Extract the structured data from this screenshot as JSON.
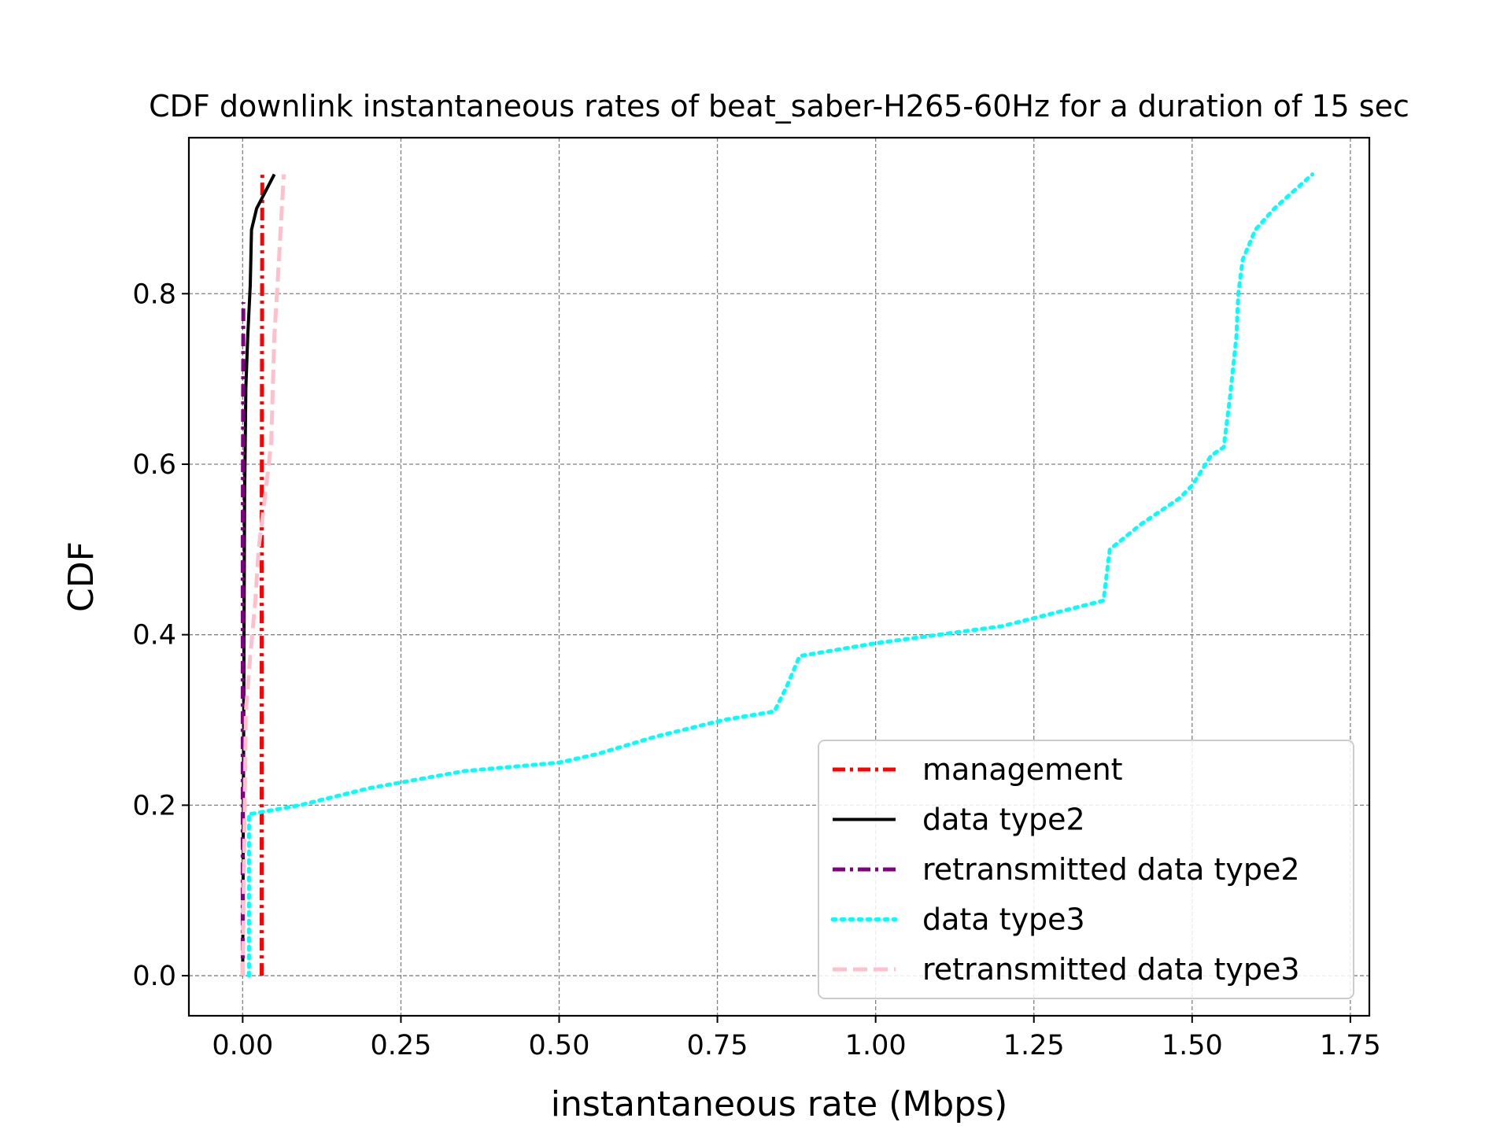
{
  "chart_data": {
    "type": "line",
    "title": "CDF downlink instantaneous rates of beat_saber-H265-60Hz for a duration of 15 sec",
    "xlabel": "instantaneous rate (Mbps)",
    "ylabel": "CDF",
    "xlim": [
      -0.085,
      1.78
    ],
    "ylim": [
      -0.047,
      0.983
    ],
    "xticks": [
      0.0,
      0.25,
      0.5,
      0.75,
      1.0,
      1.25,
      1.5,
      1.75
    ],
    "xtick_labels": [
      "0.00",
      "0.25",
      "0.50",
      "0.75",
      "1.00",
      "1.25",
      "1.50",
      "1.75"
    ],
    "yticks": [
      0.0,
      0.2,
      0.4,
      0.6,
      0.8
    ],
    "ytick_labels": [
      "0.0",
      "0.2",
      "0.4",
      "0.6",
      "0.8"
    ],
    "grid": true,
    "legend_position": "lower-right",
    "series": [
      {
        "name": "management",
        "color": "#ff0000",
        "style": "dashdot",
        "x": [
          0.03,
          0.03,
          0.031
        ],
        "y": [
          0.0,
          0.5,
          0.94
        ]
      },
      {
        "name": "data type2",
        "color": "#000000",
        "style": "solid",
        "x": [
          0.0,
          0.001,
          0.002,
          0.003,
          0.005,
          0.008,
          0.012,
          0.014,
          0.022,
          0.05
        ],
        "y": [
          0.0,
          0.19,
          0.38,
          0.56,
          0.69,
          0.75,
          0.81,
          0.875,
          0.9,
          0.94
        ]
      },
      {
        "name": "retransmitted data type2",
        "color": "#800080",
        "style": "dashdot",
        "x": [
          0.0,
          0.0,
          0.001
        ],
        "y": [
          0.0,
          0.5,
          0.79
        ]
      },
      {
        "name": "data type3",
        "color": "#00ffff",
        "style": "dotted",
        "x": [
          0.01,
          0.01,
          0.015,
          0.09,
          0.2,
          0.35,
          0.5,
          0.56,
          0.65,
          0.76,
          0.84,
          0.86,
          0.88,
          1.0,
          1.2,
          1.36,
          1.37,
          1.42,
          1.48,
          1.5,
          1.53,
          1.55,
          1.56,
          1.57,
          1.573,
          1.58,
          1.6,
          1.63,
          1.69
        ],
        "y": [
          0.0,
          0.19,
          0.19,
          0.2,
          0.22,
          0.24,
          0.25,
          0.26,
          0.28,
          0.3,
          0.31,
          0.34,
          0.375,
          0.39,
          0.41,
          0.44,
          0.5,
          0.53,
          0.56,
          0.575,
          0.61,
          0.62,
          0.68,
          0.75,
          0.8,
          0.84,
          0.875,
          0.9,
          0.94
        ]
      },
      {
        "name": "retransmitted data type3",
        "color": "#ffc0cb",
        "style": "dashed",
        "x": [
          0.0,
          0.003,
          0.005,
          0.012,
          0.02,
          0.025,
          0.035,
          0.045,
          0.05,
          0.055,
          0.06,
          0.065
        ],
        "y": [
          0.0,
          0.19,
          0.31,
          0.375,
          0.44,
          0.5,
          0.56,
          0.625,
          0.75,
          0.81,
          0.875,
          0.94
        ]
      }
    ]
  }
}
